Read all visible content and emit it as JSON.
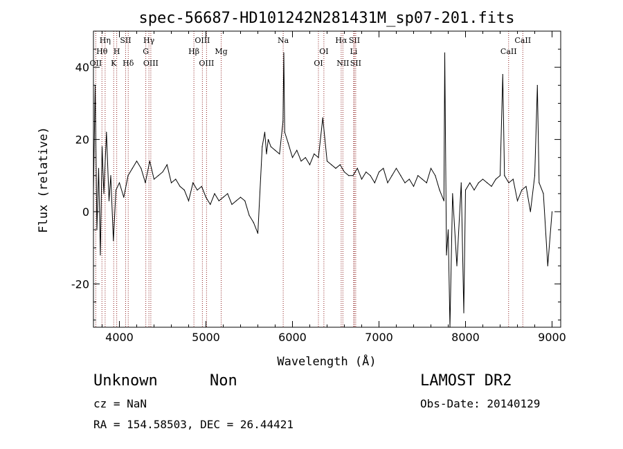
{
  "chart_data": {
    "type": "line",
    "title": "spec-56687-HD101242N281431M_sp07-201.fits",
    "xlabel": "Wavelength (Å)",
    "ylabel": "Flux (relative)",
    "xlim": [
      3700,
      9100
    ],
    "ylim": [
      -32,
      50
    ],
    "xticks": [
      4000,
      5000,
      6000,
      7000,
      8000,
      9000
    ],
    "yticks": [
      -20,
      0,
      20,
      40
    ],
    "grid": false,
    "series": [
      {
        "x": [
          3700,
          3720,
          3740,
          3760,
          3780,
          3800,
          3820,
          3850,
          3880,
          3900,
          3930,
          3960,
          4000,
          4050,
          4100,
          4150,
          4200,
          4250,
          4300,
          4350,
          4400,
          4450,
          4500,
          4550,
          4600,
          4650,
          4700,
          4750,
          4800,
          4850,
          4900,
          4950,
          5000,
          5050,
          5100,
          5150,
          5200,
          5250,
          5300,
          5350,
          5400,
          5450,
          5500,
          5550,
          5600,
          5650,
          5680,
          5700,
          5720,
          5750,
          5800,
          5850,
          5890,
          5900,
          5910,
          5950,
          6000,
          6050,
          6100,
          6150,
          6200,
          6250,
          6300,
          6350,
          6400,
          6450,
          6500,
          6550,
          6600,
          6650,
          6700,
          6750,
          6800,
          6850,
          6900,
          6950,
          7000,
          7050,
          7100,
          7150,
          7200,
          7250,
          7300,
          7350,
          7400,
          7450,
          7500,
          7550,
          7600,
          7650,
          7700,
          7750,
          7760,
          7780,
          7800,
          7820,
          7850,
          7900,
          7950,
          7980,
          8000,
          8050,
          8100,
          8150,
          8200,
          8250,
          8300,
          8350,
          8400,
          8430,
          8450,
          8500,
          8550,
          8600,
          8650,
          8700,
          8750,
          8800,
          8830,
          8850,
          8900,
          8950,
          9000
        ],
        "y": [
          5,
          35,
          -5,
          12,
          -12,
          18,
          5,
          22,
          3,
          10,
          -8,
          6,
          8,
          4,
          10,
          12,
          14,
          12,
          8,
          14,
          9,
          10,
          11,
          13,
          8,
          9,
          7,
          6,
          3,
          8,
          6,
          7,
          4,
          2,
          5,
          3,
          4,
          5,
          2,
          3,
          4,
          3,
          -1,
          -3,
          -6,
          18,
          22,
          16,
          20,
          18,
          17,
          16,
          25,
          44,
          22,
          19,
          15,
          17,
          14,
          15,
          13,
          16,
          15,
          26,
          14,
          13,
          12,
          13,
          11,
          10,
          10,
          12,
          9,
          11,
          10,
          8,
          11,
          12,
          8,
          10,
          12,
          10,
          8,
          9,
          7,
          10,
          9,
          8,
          12,
          10,
          6,
          3,
          44,
          -12,
          -5,
          -32,
          5,
          -15,
          8,
          -28,
          6,
          8,
          6,
          8,
          9,
          8,
          7,
          9,
          10,
          38,
          10,
          8,
          9,
          3,
          6,
          7,
          0,
          10,
          35,
          8,
          5,
          -15,
          0
        ]
      }
    ],
    "lines": [
      {
        "label": "OII",
        "x": 3727,
        "row": 3
      },
      {
        "label": "Hθ",
        "x": 3798,
        "row": 2
      },
      {
        "label": "Hη",
        "x": 3835,
        "row": 1
      },
      {
        "label": "K",
        "x": 3934,
        "row": 3
      },
      {
        "label": "H",
        "x": 3969,
        "row": 2
      },
      {
        "label": "SII",
        "x": 4072,
        "row": 1
      },
      {
        "label": "Hδ",
        "x": 4102,
        "row": 3
      },
      {
        "label": "Hγ",
        "x": 4341,
        "row": 1
      },
      {
        "label": "G",
        "x": 4305,
        "row": 2
      },
      {
        "label": "OIII",
        "x": 4363,
        "row": 3
      },
      {
        "label": "Hβ",
        "x": 4861,
        "row": 2
      },
      {
        "label": "OIII",
        "x": 4959,
        "row": 1
      },
      {
        "label": "OIII",
        "x": 5007,
        "row": 3
      },
      {
        "label": "Mg",
        "x": 5176,
        "row": 2
      },
      {
        "label": "Na",
        "x": 5893,
        "row": 1
      },
      {
        "label": "OI",
        "x": 6300,
        "row": 3
      },
      {
        "label": "OI",
        "x": 6363,
        "row": 2
      },
      {
        "label": "Hα",
        "x": 6563,
        "row": 1
      },
      {
        "label": "NII",
        "x": 6583,
        "row": 3
      },
      {
        "label": "SII",
        "x": 6716,
        "row": 1
      },
      {
        "label": "Li",
        "x": 6707,
        "row": 2
      },
      {
        "label": "SII",
        "x": 6731,
        "row": 3
      },
      {
        "label": "CaII",
        "x": 8498,
        "row": 2
      },
      {
        "label": "CaII",
        "x": 8662,
        "row": 1
      }
    ]
  },
  "info": {
    "class_label": "Unknown",
    "subclass_label": "Non",
    "cz": "cz = NaN",
    "coords": "RA = 154.58503, DEC =  26.44421",
    "survey": "LAMOST DR2",
    "obs_date": "Obs-Date: 20140129"
  }
}
